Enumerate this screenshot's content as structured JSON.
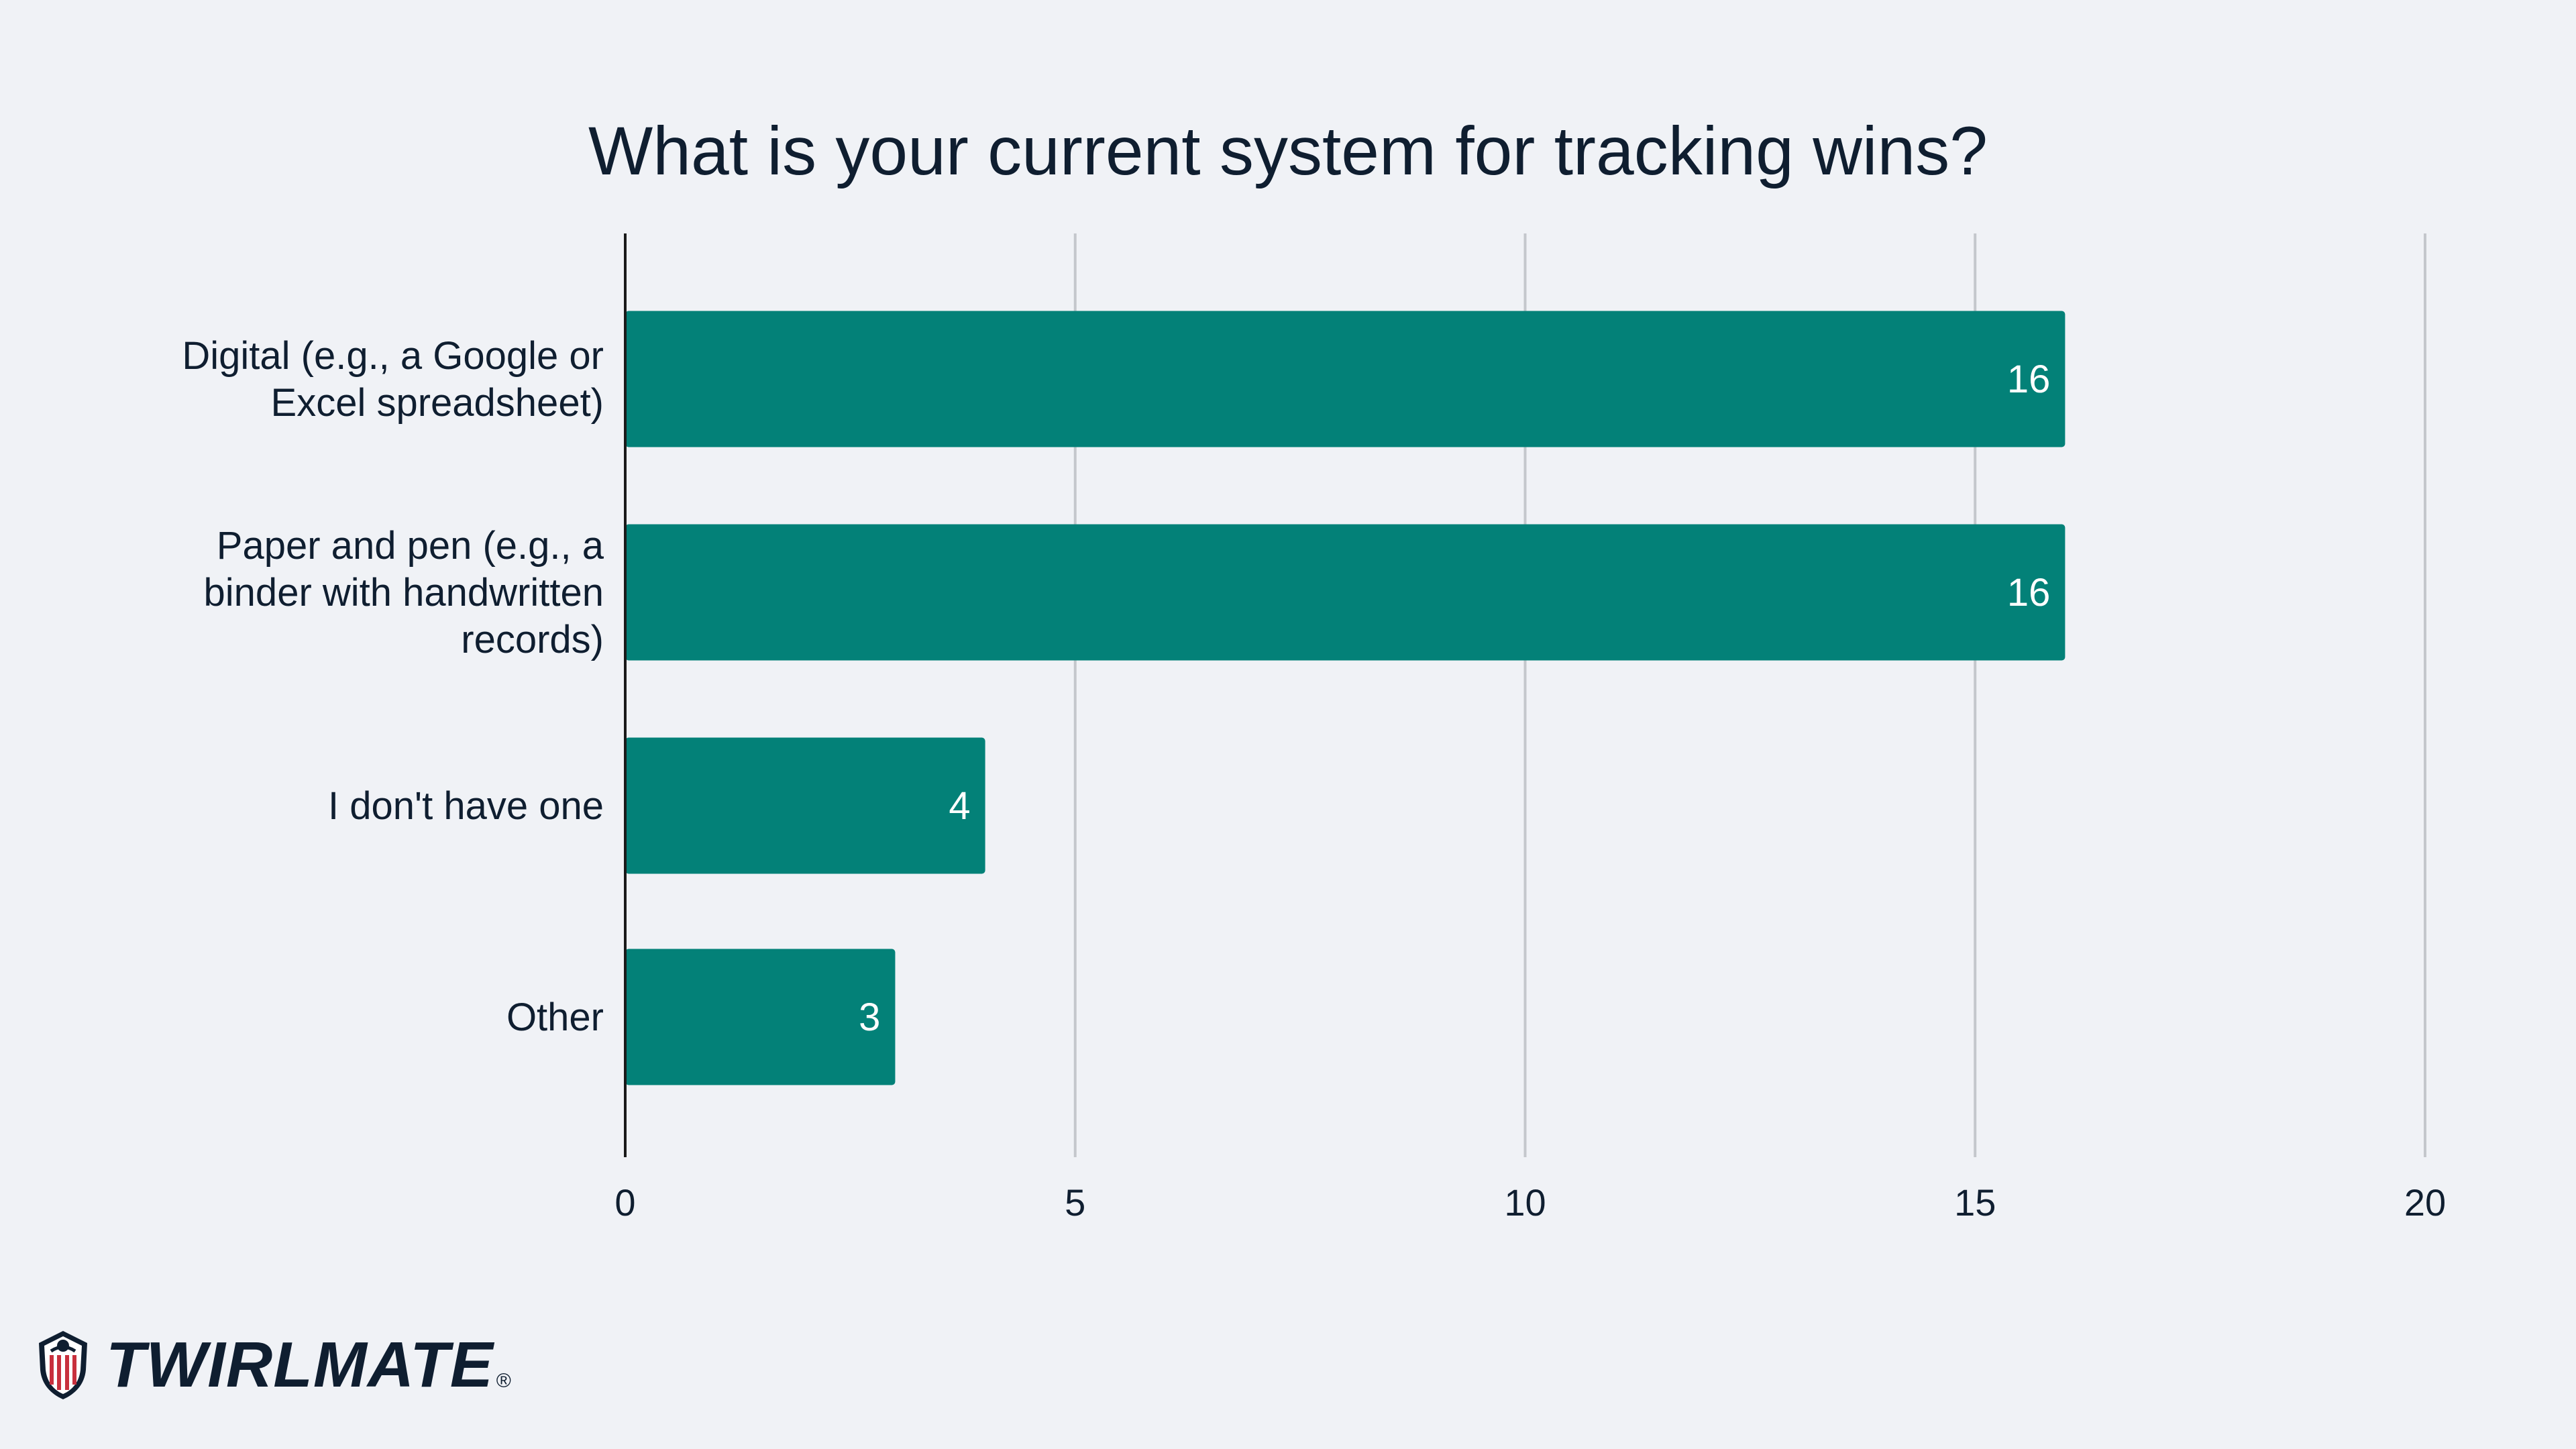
{
  "chart_data": {
    "type": "bar",
    "orientation": "horizontal",
    "title": "What is your current system for tracking wins?",
    "categories": [
      [
        "Digital (e.g., a Google or",
        "Excel spreadsheet)"
      ],
      [
        "Paper and pen (e.g., a",
        "binder with handwritten",
        "records)"
      ],
      [
        "I don't have one"
      ],
      [
        "Other"
      ]
    ],
    "values": [
      16,
      16,
      4,
      3
    ],
    "data_labels": [
      "16",
      "16",
      "4",
      "3"
    ],
    "xlim": [
      0,
      20
    ],
    "x_ticks": [
      0,
      5,
      10,
      15,
      20
    ],
    "x_tick_labels": [
      "0",
      "5",
      "10",
      "15",
      "20"
    ],
    "grid": "vertical",
    "bar_color": "#038178",
    "label_color": "#ffffff"
  },
  "brand": {
    "name": "TWIRLMATE",
    "reg_mark": "®",
    "icon": "twirlmate-shield-logo"
  },
  "colors": {
    "background": "#f0f2f6",
    "text": "#0f1e30",
    "grid": "#c4c7cc",
    "axis": "#1a1a1a"
  }
}
